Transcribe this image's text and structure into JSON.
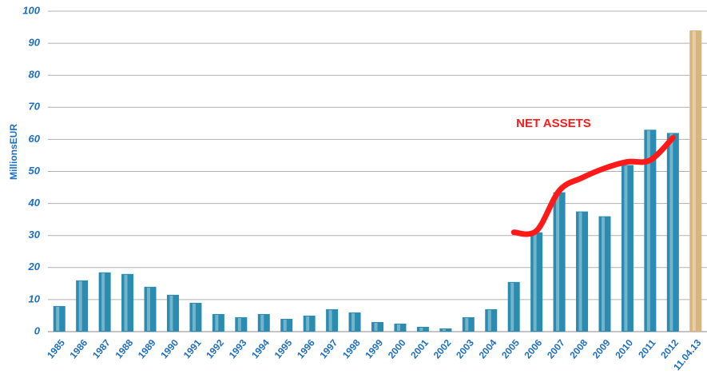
{
  "chart_data": {
    "type": "bar",
    "ylabel": "MillionsEUR",
    "categories": [
      "1985",
      "1986",
      "1987",
      "1988",
      "1989",
      "1990",
      "1991",
      "1992",
      "1993",
      "1994",
      "1995",
      "1996",
      "1997",
      "1998",
      "1999",
      "2000",
      "2001",
      "2002",
      "2003",
      "2004",
      "2005",
      "2006",
      "2007",
      "2008",
      "2009",
      "2010",
      "2011",
      "2012",
      "11.04.13"
    ],
    "values": [
      8,
      16,
      18.5,
      18,
      14,
      11.5,
      9,
      5.5,
      4.5,
      5.5,
      4,
      5,
      7,
      6,
      3,
      2.5,
      1.5,
      1,
      4.5,
      7,
      15.5,
      31,
      43.5,
      37.5,
      36,
      52,
      63,
      62,
      94
    ],
    "colors": [
      "#2a8cb0",
      "#2a8cb0",
      "#2a8cb0",
      "#2a8cb0",
      "#2a8cb0",
      "#2a8cb0",
      "#2a8cb0",
      "#2a8cb0",
      "#2a8cb0",
      "#2a8cb0",
      "#2a8cb0",
      "#2a8cb0",
      "#2a8cb0",
      "#2a8cb0",
      "#2a8cb0",
      "#2a8cb0",
      "#2a8cb0",
      "#2a8cb0",
      "#2a8cb0",
      "#2a8cb0",
      "#2a8cb0",
      "#2a8cb0",
      "#2a8cb0",
      "#2a8cb0",
      "#2a8cb0",
      "#2a8cb0",
      "#2a8cb0",
      "#2a8cb0",
      "#d9b47c"
    ],
    "series": [
      {
        "name": "NET ASSETS",
        "color": "#ff1a1a",
        "type": "line",
        "values": [
          null,
          null,
          null,
          null,
          null,
          null,
          null,
          null,
          null,
          null,
          null,
          null,
          null,
          null,
          null,
          null,
          null,
          null,
          null,
          null,
          31,
          31.5,
          44,
          48,
          51,
          53,
          53.5,
          60.5,
          null
        ]
      }
    ],
    "ylim": [
      0,
      100
    ],
    "yticks": [
      0,
      10,
      20,
      30,
      40,
      50,
      60,
      70,
      80,
      90,
      100
    ],
    "grid": true
  }
}
